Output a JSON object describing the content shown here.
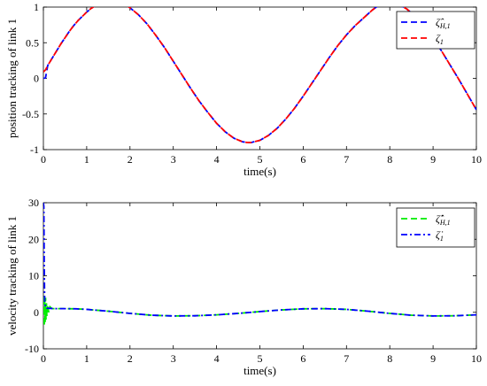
{
  "chart_data": [
    {
      "type": "line",
      "xlabel": "time(s)",
      "ylabel": "position tracking of link 1",
      "xlim": [
        0,
        10
      ],
      "ylim": [
        -1,
        1
      ],
      "xticks": [
        "0",
        "1",
        "2",
        "3",
        "4",
        "5",
        "6",
        "7",
        "8",
        "9",
        "10"
      ],
      "yticks": [
        "1",
        "0.5",
        "0",
        "-0.5",
        "-1"
      ],
      "yticks_values": [
        1,
        0.5,
        0,
        -0.5,
        -1
      ],
      "grid": false,
      "legend": "top-right",
      "series": [
        {
          "name": "ζ̂_{H,1}",
          "legend_symbol": "ζ̂",
          "legend_sub": "H,1",
          "color": "#0000ff",
          "style": "dashed",
          "x": [
            0,
            0.05,
            0.1,
            0.2,
            0.3,
            0.4,
            0.5,
            0.6,
            0.7,
            0.8,
            0.9,
            1.0,
            1.1,
            1.2,
            1.3,
            1.4,
            1.5,
            1.6,
            1.7,
            1.8,
            1.9,
            2.0,
            2.2,
            2.4,
            2.6,
            2.8,
            3.0,
            3.2,
            3.4,
            3.6,
            3.8,
            4.0,
            4.2,
            4.4,
            4.6,
            4.7,
            4.8,
            5.0,
            5.2,
            5.4,
            5.6,
            5.8,
            6.0,
            6.2,
            6.4,
            6.6,
            6.8,
            7.0,
            7.2,
            7.4,
            7.6,
            7.8,
            7.9,
            8.0,
            8.2,
            8.4,
            8.6,
            8.8,
            9.0,
            9.2,
            9.4,
            9.6,
            9.8,
            10.0
          ],
          "y": [
            0.0,
            0.01,
            0.18,
            0.28,
            0.38,
            0.48,
            0.57,
            0.66,
            0.74,
            0.81,
            0.87,
            0.93,
            0.98,
            1.02,
            1.05,
            1.07,
            1.08,
            1.08,
            1.07,
            1.05,
            1.03,
            0.99,
            0.89,
            0.76,
            0.6,
            0.43,
            0.24,
            0.05,
            -0.14,
            -0.32,
            -0.48,
            -0.63,
            -0.75,
            -0.84,
            -0.89,
            -0.9,
            -0.9,
            -0.87,
            -0.8,
            -0.7,
            -0.57,
            -0.42,
            -0.25,
            -0.07,
            0.11,
            0.29,
            0.46,
            0.61,
            0.74,
            0.85,
            0.96,
            1.05,
            1.08,
            1.07,
            1.04,
            0.97,
            0.86,
            0.72,
            0.56,
            0.38,
            0.18,
            -0.02,
            -0.23,
            -0.44
          ]
        },
        {
          "name": "ζ_1",
          "legend_symbol": "ζ",
          "legend_sub": "1",
          "color": "#ff0000",
          "style": "dashed",
          "x": [
            0,
            0.05,
            0.1,
            0.2,
            0.3,
            0.4,
            0.5,
            0.6,
            0.7,
            0.8,
            0.9,
            1.0,
            1.1,
            1.2,
            1.3,
            1.4,
            1.5,
            1.6,
            1.7,
            1.8,
            1.9,
            2.0,
            2.2,
            2.4,
            2.6,
            2.8,
            3.0,
            3.2,
            3.4,
            3.6,
            3.8,
            4.0,
            4.2,
            4.4,
            4.6,
            4.7,
            4.8,
            5.0,
            5.2,
            5.4,
            5.6,
            5.8,
            6.0,
            6.2,
            6.4,
            6.6,
            6.8,
            7.0,
            7.2,
            7.4,
            7.6,
            7.8,
            7.9,
            8.0,
            8.2,
            8.4,
            8.6,
            8.8,
            9.0,
            9.2,
            9.4,
            9.6,
            9.8,
            10.0
          ],
          "y": [
            0.09,
            0.12,
            0.18,
            0.28,
            0.38,
            0.48,
            0.57,
            0.66,
            0.74,
            0.81,
            0.87,
            0.93,
            0.98,
            1.02,
            1.05,
            1.07,
            1.08,
            1.08,
            1.07,
            1.05,
            1.03,
            0.99,
            0.89,
            0.76,
            0.6,
            0.43,
            0.24,
            0.05,
            -0.14,
            -0.32,
            -0.48,
            -0.63,
            -0.75,
            -0.84,
            -0.89,
            -0.9,
            -0.9,
            -0.87,
            -0.8,
            -0.7,
            -0.57,
            -0.42,
            -0.25,
            -0.07,
            0.11,
            0.29,
            0.46,
            0.61,
            0.74,
            0.85,
            0.96,
            1.05,
            1.08,
            1.07,
            1.04,
            0.97,
            0.86,
            0.72,
            0.56,
            0.38,
            0.18,
            -0.02,
            -0.23,
            -0.44
          ]
        }
      ]
    },
    {
      "type": "line",
      "xlabel": "time(s)",
      "ylabel": "velocity tracking of link 1",
      "xlim": [
        0,
        10
      ],
      "ylim": [
        -10,
        30
      ],
      "xticks": [
        "0",
        "1",
        "2",
        "3",
        "4",
        "5",
        "6",
        "7",
        "8",
        "9",
        "10"
      ],
      "yticks": [
        "30",
        "20",
        "10",
        "0",
        "-10"
      ],
      "yticks_values": [
        30,
        20,
        10,
        0,
        -10
      ],
      "grid": false,
      "legend": "top-right",
      "series": [
        {
          "name": "ζ̂̇_{H,1}",
          "legend_symbol": "ζ̂̇",
          "legend_sub": "H,1",
          "color": "#00ee00",
          "style": "dashed",
          "x": [
            0,
            0.01,
            0.02,
            0.03,
            0.04,
            0.05,
            0.06,
            0.07,
            0.08,
            0.1,
            0.12,
            0.15,
            0.2,
            0.3,
            0.5,
            0.75,
            1.0,
            1.5,
            2.0,
            2.5,
            3.0,
            3.5,
            4.0,
            4.5,
            5.0,
            5.5,
            6.0,
            6.5,
            7.0,
            7.5,
            8.0,
            8.5,
            9.0,
            9.5,
            10.0
          ],
          "y": [
            0.0,
            4.5,
            -3.8,
            3.2,
            -3.0,
            4.0,
            -2.0,
            2.5,
            -1.0,
            2.0,
            0.0,
            1.5,
            1.0,
            1.0,
            1.0,
            0.95,
            0.8,
            0.3,
            -0.3,
            -0.8,
            -1.0,
            -0.95,
            -0.7,
            -0.3,
            0.2,
            0.65,
            0.95,
            1.0,
            0.8,
            0.3,
            -0.3,
            -0.8,
            -1.0,
            -0.95,
            -0.7
          ]
        },
        {
          "name": "ζ̇_1",
          "legend_symbol": "ζ̇",
          "legend_sub": "1",
          "color": "#0000ff",
          "style": "dashdot",
          "x": [
            0,
            0.01,
            0.02,
            0.03,
            0.05,
            0.08,
            0.1,
            0.2,
            0.3,
            0.5,
            0.75,
            1.0,
            1.5,
            2.0,
            2.5,
            3.0,
            3.5,
            4.0,
            4.5,
            5.0,
            5.5,
            6.0,
            6.5,
            7.0,
            7.5,
            8.0,
            8.5,
            9.0,
            9.5,
            10.0
          ],
          "y": [
            30.0,
            29.0,
            12.0,
            3.0,
            1.2,
            1.1,
            1.1,
            1.05,
            1.0,
            1.0,
            0.95,
            0.8,
            0.3,
            -0.3,
            -0.8,
            -1.0,
            -0.95,
            -0.7,
            -0.3,
            0.2,
            0.65,
            0.95,
            1.0,
            0.8,
            0.3,
            -0.3,
            -0.8,
            -1.0,
            -0.95,
            -0.7
          ]
        }
      ]
    }
  ]
}
